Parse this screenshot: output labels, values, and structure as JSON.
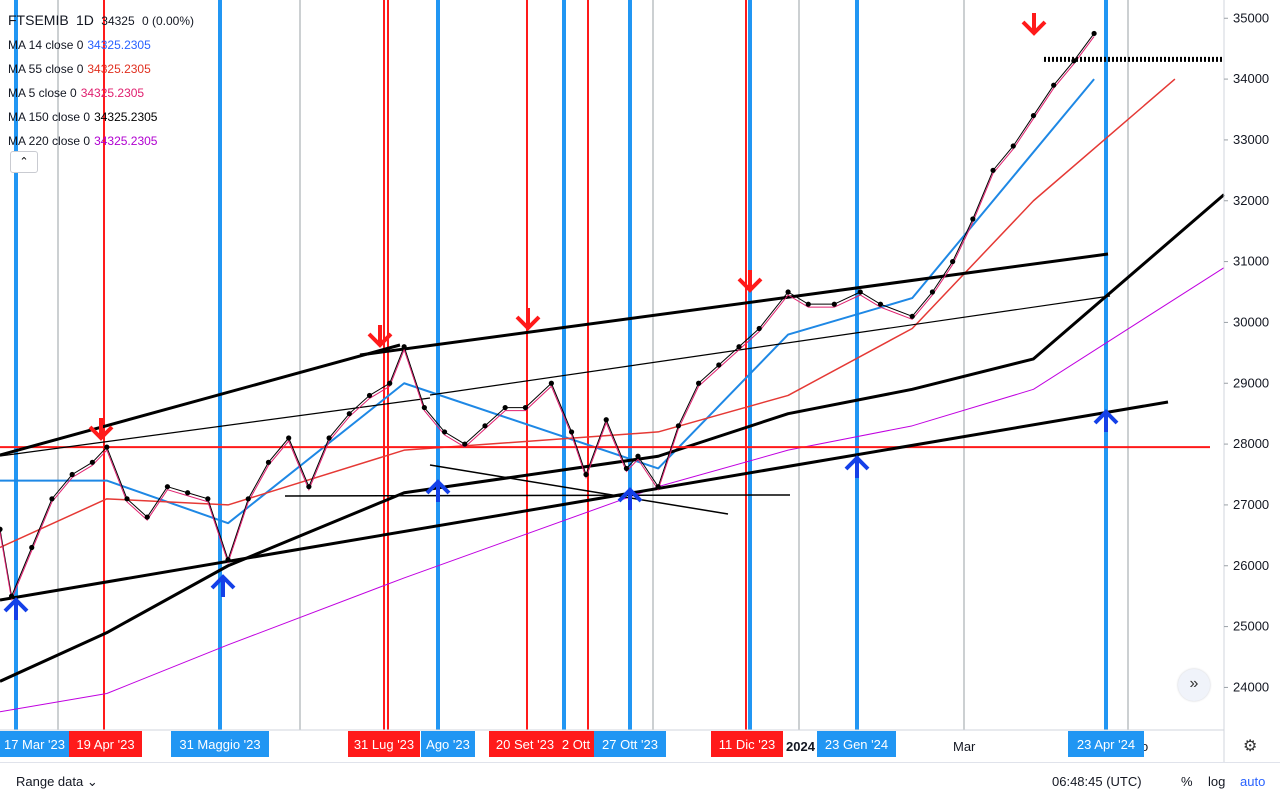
{
  "legend": {
    "symbol": "FTSEMIB",
    "interval": "1D",
    "last": "34325",
    "change": "0 (0.00%)",
    "ma": [
      {
        "label": "MA 14 close 0",
        "value": "34325.2305",
        "color": "#2962ff"
      },
      {
        "label": "MA 55 close 0",
        "value": "34325.2305",
        "color": "#e03020"
      },
      {
        "label": "MA 5 close 0",
        "value": "34325.2305",
        "color": "#e0206f"
      },
      {
        "label": "MA 150 close 0",
        "value": "34325.2305",
        "color": "#000000"
      },
      {
        "label": "MA 220 close 0",
        "value": "34325.2305",
        "color": "#b000d0"
      }
    ],
    "collapse_icon": "chevron-up-icon"
  },
  "price_axis": [
    "35000",
    "34000",
    "33000",
    "32000",
    "31000",
    "30000",
    "29000",
    "28000",
    "27000",
    "26000",
    "25000",
    "24000"
  ],
  "time_axis_plain": [
    {
      "text": "2024",
      "bold": true
    },
    {
      "text": "Mar",
      "bold": false
    },
    {
      "text": "o",
      "bold": false
    }
  ],
  "date_tags": [
    {
      "text": "17 Mar '23",
      "color": "blue"
    },
    {
      "text": "19 Apr '23",
      "color": "red"
    },
    {
      "text": "31 Maggio '23",
      "color": "blue"
    },
    {
      "text": "31 Lug '23",
      "color": "red"
    },
    {
      "text": "Ago '23",
      "color": "blue"
    },
    {
      "text": "20 Set '23",
      "color": "red"
    },
    {
      "text": "2 Ott",
      "color": "red"
    },
    {
      "text": "27 Ott '23",
      "color": "blue"
    },
    {
      "text": "11 Dic '23",
      "color": "red"
    },
    {
      "text": "23 Gen '24",
      "color": "blue"
    },
    {
      "text": "23 Apr '24",
      "color": "blue"
    }
  ],
  "bottom_bar": {
    "range_label": "Range data",
    "clock": "06:48:45 (UTC)",
    "percent": "%",
    "log": "log",
    "auto": "auto"
  },
  "icons": {
    "settings": "gear-icon",
    "scroll": "double-chevron-right-icon",
    "range_dropdown": "chevron-down-icon"
  },
  "colors": {
    "blue_line": "#2196f3",
    "red_line": "#ff1a1a",
    "tag_blue": "#2196f3",
    "tag_red": "#ff1a1a",
    "arrow_blue": "#1440e8"
  },
  "chart_data": {
    "type": "line",
    "symbol": "FTSEMIB",
    "ylim": [
      23300,
      35300
    ],
    "grid": true,
    "close_series": {
      "dates": [
        "2023-03-13",
        "2023-03-17",
        "2023-03-24",
        "2023-03-31",
        "2023-04-07",
        "2023-04-14",
        "2023-04-19",
        "2023-04-26",
        "2023-05-03",
        "2023-05-10",
        "2023-05-17",
        "2023-05-24",
        "2023-05-31",
        "2023-06-07",
        "2023-06-14",
        "2023-06-21",
        "2023-06-28",
        "2023-07-05",
        "2023-07-12",
        "2023-07-19",
        "2023-07-26",
        "2023-07-31",
        "2023-08-07",
        "2023-08-14",
        "2023-08-21",
        "2023-08-28",
        "2023-09-04",
        "2023-09-11",
        "2023-09-20",
        "2023-09-27",
        "2023-10-02",
        "2023-10-09",
        "2023-10-16",
        "2023-10-20",
        "2023-10-27",
        "2023-11-03",
        "2023-11-10",
        "2023-11-17",
        "2023-11-24",
        "2023-12-01",
        "2023-12-11",
        "2023-12-18",
        "2023-12-27",
        "2024-01-05",
        "2024-01-12",
        "2024-01-23",
        "2024-01-30",
        "2024-02-06",
        "2024-02-13",
        "2024-02-20",
        "2024-02-27",
        "2024-03-05",
        "2024-03-12",
        "2024-03-19",
        "2024-03-26"
      ],
      "values": [
        26600,
        25500,
        26300,
        27100,
        27500,
        27700,
        27950,
        27100,
        26800,
        27300,
        27200,
        27100,
        26100,
        27100,
        27700,
        28100,
        27300,
        28100,
        28500,
        28800,
        29000,
        29600,
        28600,
        28200,
        28000,
        28300,
        28600,
        28600,
        29000,
        28200,
        27500,
        28400,
        27600,
        27800,
        27300,
        28300,
        29000,
        29300,
        29600,
        29900,
        30500,
        30300,
        30300,
        30500,
        30300,
        30100,
        30500,
        31000,
        31700,
        32500,
        32900,
        33400,
        33900,
        34300,
        34750
      ]
    },
    "projection_level": 34325,
    "horizontal_level": 27950,
    "ma_series": [
      {
        "name": "MA 14",
        "dates": [
          "2023-03-13",
          "2023-04-19",
          "2023-05-31",
          "2023-07-31",
          "2023-10-27",
          "2023-12-11",
          "2024-01-23",
          "2024-03-26"
        ],
        "values": [
          27400,
          27400,
          26700,
          29000,
          27600,
          29800,
          30400,
          34000
        ]
      },
      {
        "name": "MA 55",
        "dates": [
          "2023-03-13",
          "2023-04-19",
          "2023-05-31",
          "2023-07-31",
          "2023-10-27",
          "2023-12-11",
          "2024-01-23",
          "2024-03-05",
          "2024-04-23"
        ],
        "values": [
          26300,
          27100,
          27000,
          27900,
          28200,
          28800,
          29900,
          32000,
          34000
        ]
      },
      {
        "name": "MA 150",
        "dates": [
          "2023-03-13",
          "2023-04-19",
          "2023-05-31",
          "2023-07-31",
          "2023-10-27",
          "2023-12-11",
          "2024-01-23",
          "2024-03-05",
          "2024-05-10"
        ],
        "values": [
          24100,
          24900,
          26000,
          27200,
          27800,
          28500,
          28900,
          29400,
          32100
        ]
      },
      {
        "name": "MA 220",
        "dates": [
          "2023-03-13",
          "2023-04-19",
          "2023-05-31",
          "2023-07-31",
          "2023-10-27",
          "2023-12-11",
          "2024-01-23",
          "2024-03-05",
          "2024-05-10"
        ],
        "values": [
          23600,
          23900,
          24700,
          25800,
          27300,
          27900,
          28300,
          28900,
          30900
        ]
      }
    ]
  }
}
